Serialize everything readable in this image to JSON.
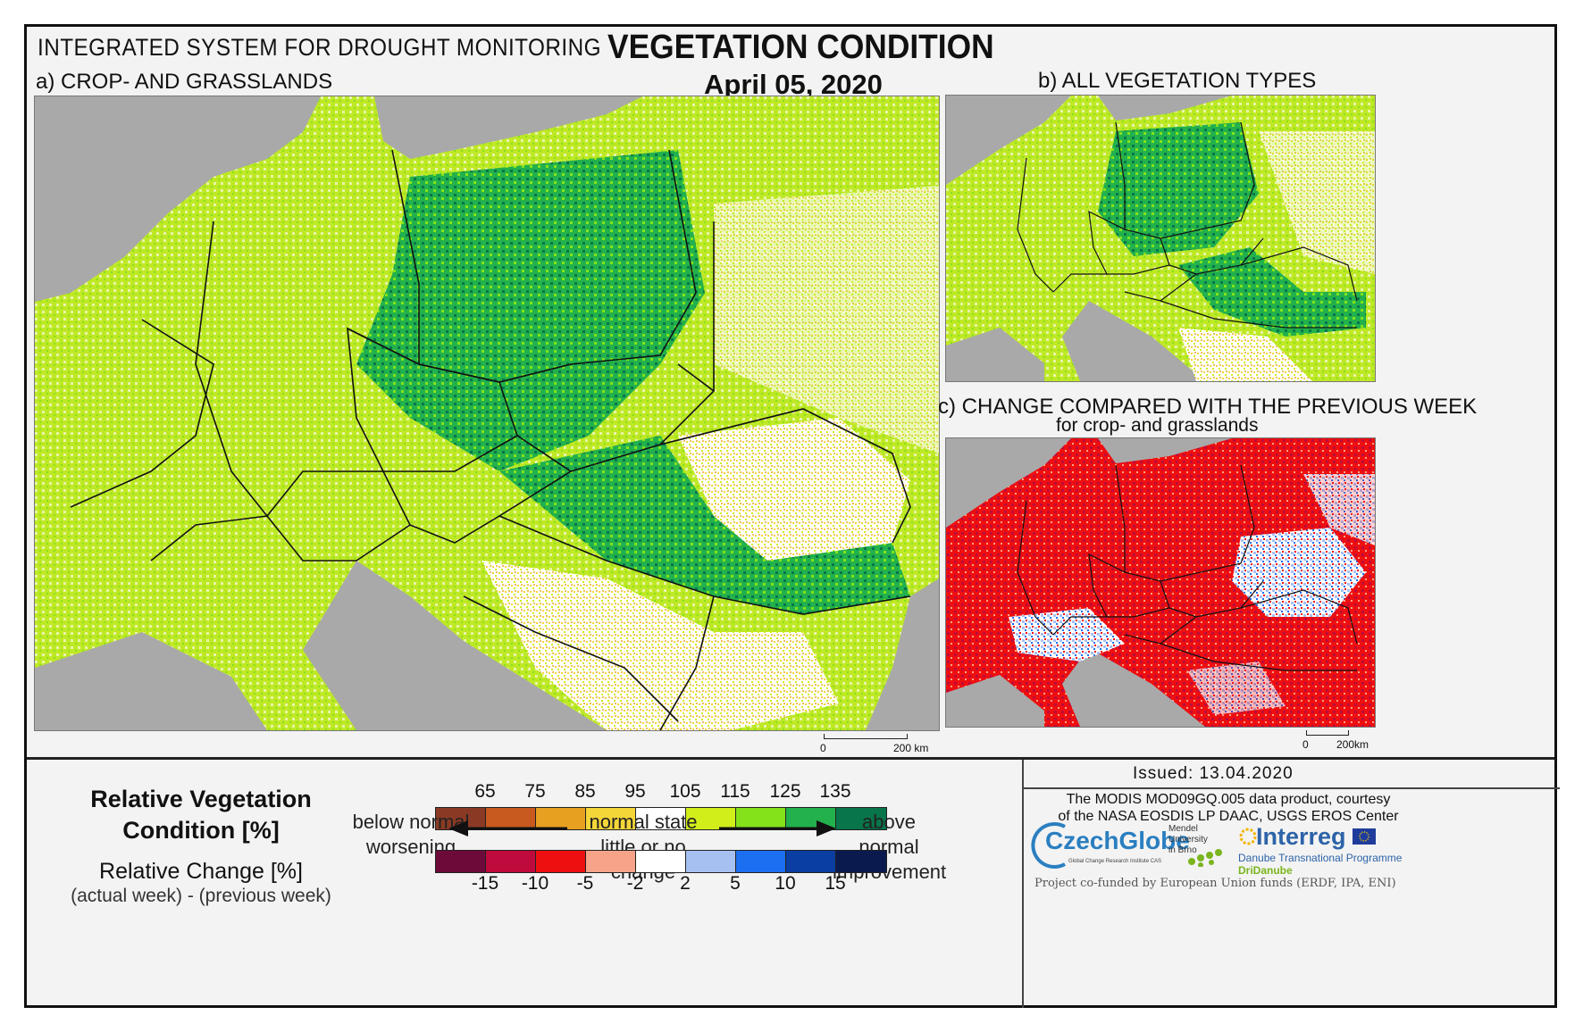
{
  "header": {
    "system_title": "INTEGRATED SYSTEM FOR DROUGHT MONITORING",
    "main_title": "VEGETATION CONDITION",
    "date": "April 05, 2020"
  },
  "panels": {
    "a_label": "a) CROP- AND GRASSLANDS",
    "b_label": "b) ALL VEGETATION TYPES",
    "c_label": "c) CHANGE COMPARED WITH THE PREVIOUS WEEK",
    "c_sublabel": "for crop- and grasslands"
  },
  "scalebars": {
    "a_zero": "0",
    "a_dist": "200 km",
    "c_zero": "0",
    "c_dist": "200km"
  },
  "legend": {
    "title_line1": "Relative Vegetation",
    "title_line2": "Condition [%]",
    "change_title": "Relative Change [%]",
    "change_formula": "(actual week) - (previous week)",
    "condition_ticks": [
      "65",
      "75",
      "85",
      "95",
      "105",
      "115",
      "125",
      "135"
    ],
    "condition_colors": [
      "#8a3a24",
      "#c85a20",
      "#e8a020",
      "#f5d638",
      "#ffffff",
      "#d2ee1a",
      "#84e21a",
      "#22b14c",
      "#08754a"
    ],
    "change_ticks": [
      "-15",
      "-10",
      "-5",
      "-2",
      "2",
      "5",
      "10",
      "15"
    ],
    "change_colors": [
      "#6e0a3a",
      "#be0a3c",
      "#ee0f10",
      "#f7a38a",
      "#ffffff",
      "#a6c0f2",
      "#1c6ff0",
      "#0a3ea0",
      "#0a1a4e"
    ],
    "left_note_line1": "below normal",
    "left_note_line2": "worsening",
    "center_note_line1": "normal state",
    "center_note_line2": "little or no change",
    "right_note_line1": "above normal",
    "right_note_line2": "improvement"
  },
  "footer": {
    "issued": "Issued: 13.04.2020",
    "credit_line1": "The MODIS MOD09GQ.005 data product, courtesy",
    "credit_line2": "of the NASA EOSDIS LP DAAC, USGS EROS Center",
    "funding": "Project co-funded by European Union funds (ERDF, IPA, ENI)"
  },
  "logos": {
    "czechglobe": "CzechGlobe",
    "czechglobe_sub": "Global Change Research Institute CAS",
    "mendel_line1": "Mendel",
    "mendel_line2": "University",
    "mendel_line3": "in Brno",
    "interreg": "Interreg",
    "interreg_sub": "Danube Transnational Programme",
    "interreg_project": "DriDanube"
  },
  "map_colors": {
    "sea": "#a9a9a9",
    "border": "#111111"
  }
}
